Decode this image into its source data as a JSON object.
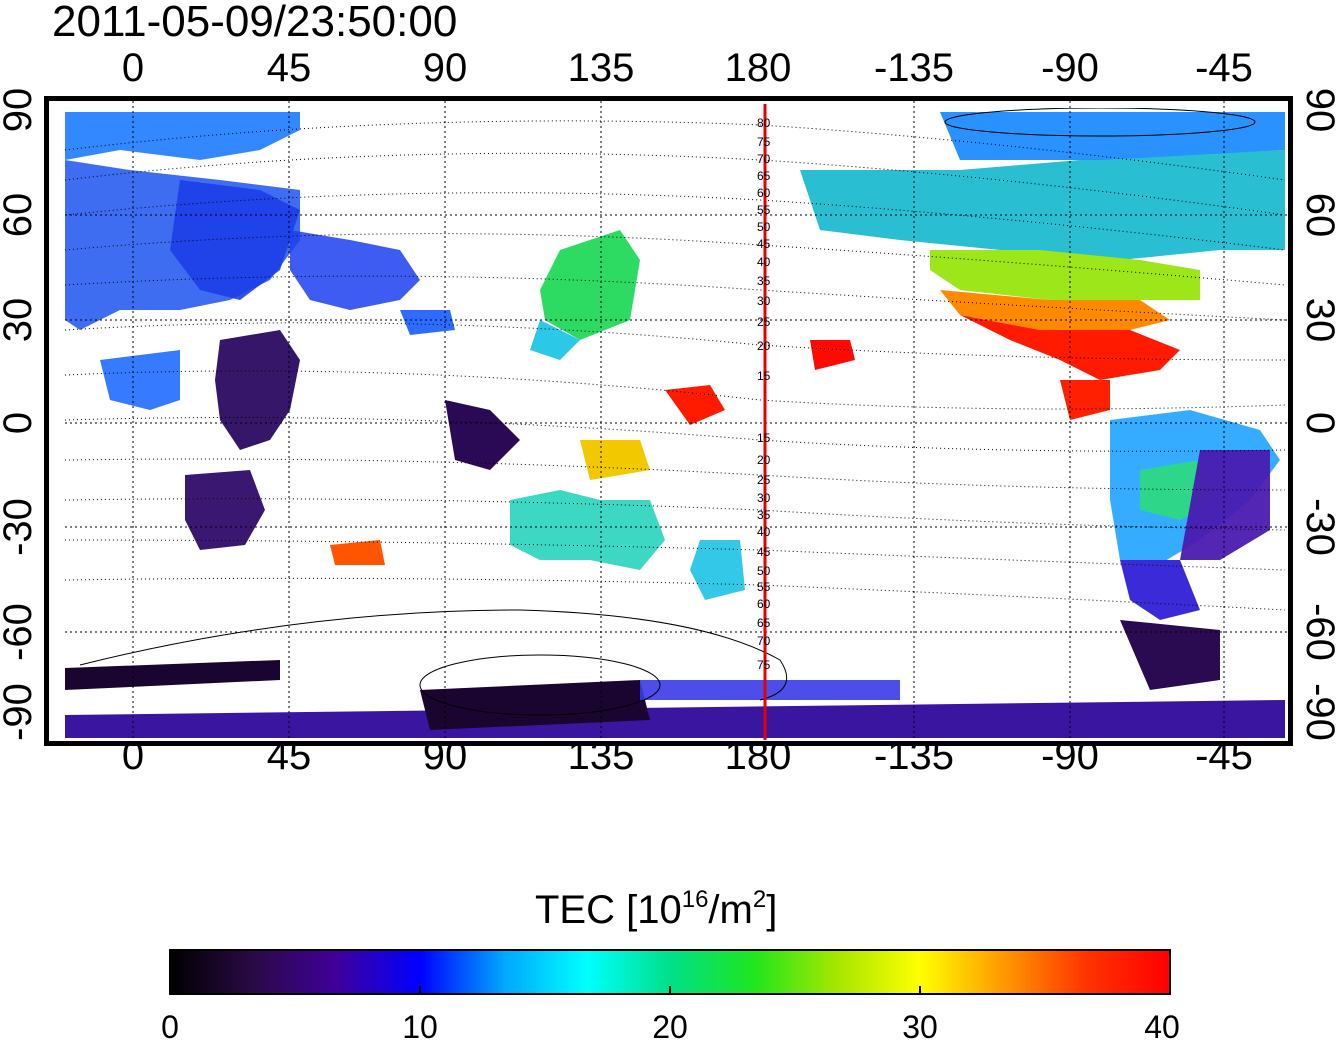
{
  "map": {
    "timestamp": "2011-05-09/23:50:00",
    "top_lon_ticks": [
      "0",
      "45",
      "90",
      "135",
      "180",
      "-135",
      "-90",
      "-45"
    ],
    "bottom_lon_ticks": [
      "0",
      "45",
      "90",
      "135",
      "180",
      "-135",
      "-90",
      "-45"
    ],
    "left_lat_ticks": [
      "90",
      "60",
      "30",
      "0",
      "-30",
      "-60",
      "-90"
    ],
    "right_lat_ticks": [
      "90",
      "60",
      "30",
      "0",
      "-30",
      "-60",
      "-90"
    ],
    "meridian_line_color": "#e60000",
    "mlat_labels_north": [
      "80",
      "75",
      "70",
      "65",
      "60",
      "55",
      "50",
      "45",
      "40",
      "35",
      "30",
      "25",
      "20",
      "15"
    ],
    "mlat_labels_south": [
      "15",
      "20",
      "25",
      "30",
      "35",
      "40",
      "45",
      "50",
      "55",
      "60",
      "65",
      "70",
      "75"
    ]
  },
  "colorbar": {
    "label_prefix": "TEC  [10",
    "label_sup1": "16",
    "label_mid": "/m",
    "label_sup2": "2",
    "label_suffix": "]",
    "ticks": [
      "0",
      "10",
      "20",
      "30",
      "40"
    ],
    "colors": [
      "#000000",
      "#2a0a45",
      "#40009a",
      "#0000ff",
      "#00a6ff",
      "#00ffff",
      "#00e08a",
      "#1ee61e",
      "#a6e600",
      "#ffff00",
      "#ff9900",
      "#ff3300",
      "#ff0000"
    ]
  }
}
